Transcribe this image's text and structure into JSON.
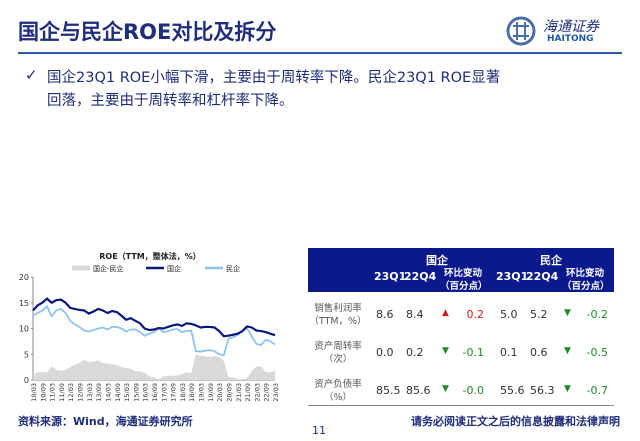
{
  "header": {
    "title": "国企与民企ROE对比及拆分",
    "logo_cn": "海通证券",
    "logo_en": "HAITONG"
  },
  "bullet": {
    "icon": "checkmark-icon",
    "line1": "国企23Q1 ROE小幅下滑，主要由于周转率下降。民企23Q1 ROE显著",
    "line2": "回落，主要由于周转率和杠杆率下降。"
  },
  "chart_data": {
    "type": "line",
    "title": "ROE（TTM，整体法，%）",
    "legend": [
      "国企-民企",
      "国企",
      "民企"
    ],
    "legend_position": "top",
    "ylim": [
      0,
      20
    ],
    "yticks": [
      "0",
      "5",
      "10",
      "15",
      "20"
    ],
    "xticks": [
      "10/03",
      "10/09",
      "11/03",
      "11/09",
      "12/03",
      "12/09",
      "13/03",
      "13/09",
      "14/03",
      "14/09",
      "15/03",
      "15/09",
      "16/03",
      "16/09",
      "17/03",
      "17/09",
      "18/03",
      "18/09",
      "19/03",
      "19/09",
      "20/03",
      "20/09",
      "21/03",
      "21/09",
      "22/03",
      "22/09",
      "23/03"
    ],
    "x_frequency": "quarterly 2010Q1-2023Q1",
    "series": [
      {
        "name": "国企",
        "type": "line",
        "color": "#0a1a7a",
        "values": [
          13.5,
          14.5,
          15,
          15.8,
          15,
          15.5,
          15.6,
          15,
          14,
          13.8,
          13.6,
          13.5,
          12.9,
          13.3,
          13.8,
          13.5,
          13,
          13.4,
          13.2,
          12.5,
          11.7,
          12,
          11.5,
          11,
          10,
          9.7,
          9.8,
          10.1,
          10,
          10.3,
          10.6,
          10.8,
          10.5,
          11,
          10.9,
          10.6,
          10.2,
          10.3,
          10.3,
          10.2,
          9.5,
          8.5,
          8.6,
          8.8,
          9,
          9.5,
          10.4,
          10.2,
          9.6,
          9.5,
          9.3,
          9,
          8.7
        ]
      },
      {
        "name": "民企",
        "type": "line",
        "color": "#8ec3ea",
        "values": [
          12.5,
          13,
          13.5,
          14.3,
          12.4,
          13.5,
          13.8,
          13,
          11.5,
          10.8,
          10.3,
          9.6,
          9.4,
          9.7,
          10,
          10.2,
          9.8,
          10.3,
          10.3,
          10,
          9.4,
          9.8,
          9.8,
          9.3,
          8.6,
          9,
          9.3,
          10,
          9.3,
          9.5,
          9.8,
          9.9,
          9.3,
          9.5,
          9.6,
          5.6,
          5.5,
          5.7,
          5.8,
          5.6,
          5,
          4.8,
          8,
          8.3,
          8.8,
          9.6,
          10,
          8.5,
          7,
          6.8,
          7.8,
          7.5,
          6.9
        ]
      },
      {
        "name": "国企-民企",
        "type": "area",
        "color": "#d9d9d9",
        "values": [
          1.0,
          1.5,
          1.5,
          1.5,
          2.6,
          2.0,
          1.8,
          2.0,
          2.5,
          3.0,
          3.3,
          3.9,
          3.5,
          3.6,
          3.8,
          3.3,
          3.2,
          3.1,
          2.9,
          2.5,
          2.3,
          2.2,
          1.7,
          1.7,
          1.4,
          0.7,
          0.5,
          0.1,
          0.7,
          0.8,
          0.8,
          0.9,
          1.2,
          1.5,
          1.3,
          5.0,
          4.7,
          4.6,
          4.5,
          4.6,
          4.5,
          3.7,
          0.6,
          0.5,
          0.2,
          0,
          0.4,
          1.7,
          2.6,
          2.7,
          1.5,
          1.5,
          1.8
        ]
      }
    ]
  },
  "table": {
    "groups": [
      "国企",
      "民企"
    ],
    "cols": [
      "23Q1",
      "22Q4",
      "环比变动",
      "（百分点）"
    ],
    "rows": [
      {
        "label": "销售利润率（TTM，%）",
        "soe": [
          "8.6",
          "8.4",
          "0.2"
        ],
        "soe_dir": "up",
        "pe": [
          "5.0",
          "5.2",
          "-0.2"
        ],
        "pe_dir": "down"
      },
      {
        "label": "资产周转率（次）",
        "soe": [
          "0.0",
          "0.2",
          "-0.1"
        ],
        "soe_dir": "down",
        "pe": [
          "0.1",
          "0.6",
          "-0.5"
        ],
        "pe_dir": "down"
      },
      {
        "label": "资产负债率（%）",
        "soe": [
          "85.5",
          "85.6",
          "-0.0"
        ],
        "soe_dir": "down",
        "pe": [
          "55.6",
          "56.3",
          "-0.7"
        ],
        "pe_dir": "down"
      }
    ],
    "arrow_up": "▲",
    "arrow_down": "▼",
    "colors": {
      "header": "#0a1a8c",
      "up": "#d02020",
      "down": "#1f8a2a"
    }
  },
  "footer": {
    "source": "资料来源：Wind，海通证券研究所",
    "page": "11",
    "disclaimer": "请务必阅读正文之后的信息披露和法律声明"
  }
}
